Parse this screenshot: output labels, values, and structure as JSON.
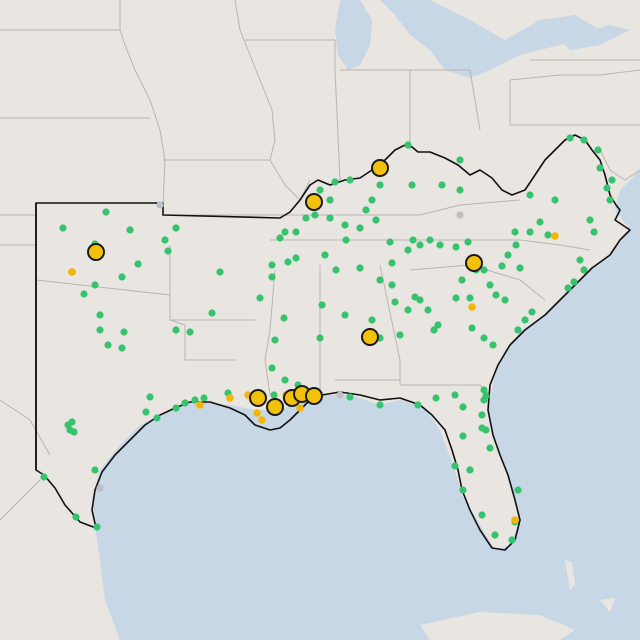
{
  "map": {
    "colors": {
      "land": "#e9e5e1",
      "water": "#c7d7e6",
      "state_border": "#b9b5b1",
      "region_outline": "#111111",
      "station_ok": "#37c26e",
      "station_warning": "#f2b705",
      "station_inactive": "#bcc0c4",
      "highlight_fill": "#f2c10a",
      "highlight_stroke": "#1a1a1a"
    },
    "legend": []
  }
}
